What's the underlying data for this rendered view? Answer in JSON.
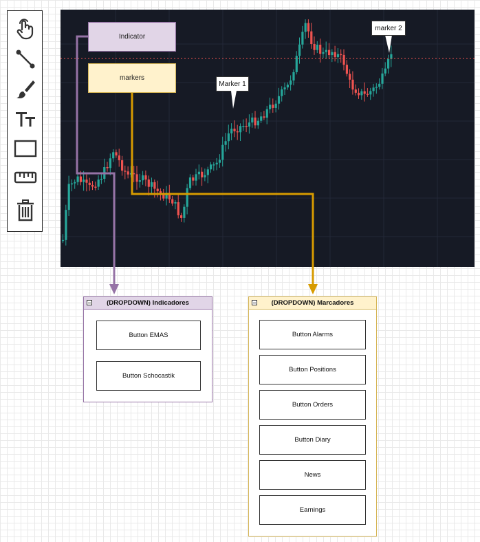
{
  "toolbar": {
    "tools": [
      {
        "icon": "pointer-hand-icon"
      },
      {
        "icon": "trend-line-icon"
      },
      {
        "icon": "brush-icon"
      },
      {
        "icon": "text-icon"
      },
      {
        "icon": "rectangle-icon"
      },
      {
        "icon": "ruler-icon"
      },
      {
        "icon": "trash-icon"
      }
    ]
  },
  "chart": {
    "background": "#161a25",
    "up_color": "#26a69a",
    "down_color": "#ef5350",
    "price_line_color": "#ef5350",
    "markers": [
      {
        "label": "Marker 1"
      },
      {
        "label": "marker 2"
      }
    ]
  },
  "nodes": {
    "indicator_label": "Indicator",
    "markers_label": "markers"
  },
  "colors": {
    "purple_line": "#9673a6",
    "yellow_line": "#d79b00",
    "purple_fill": "#e1d5e7",
    "yellow_fill": "#fff2cc"
  },
  "dropdown_indicadores": {
    "title": "(DROPDOWN) Indicadores",
    "buttons": [
      "Button EMAS",
      "Button Schocastik"
    ]
  },
  "dropdown_marcadores": {
    "title": "(DROPDOWN) Marcadores",
    "buttons": [
      "Button Alarms",
      "Button Positions",
      "Button Orders",
      "Button Diary",
      "News",
      "Earnings"
    ]
  }
}
